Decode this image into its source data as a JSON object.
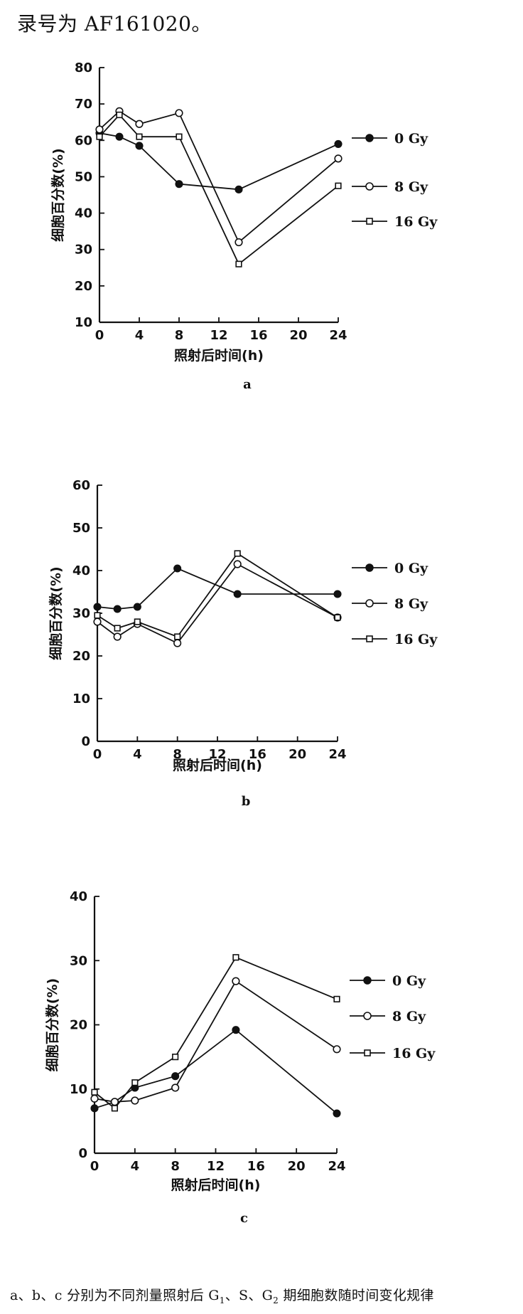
{
  "header": {
    "text": "录号为 AF161020。"
  },
  "caption": {
    "text_before": "a、b、c 分别为不同剂量照射后 G",
    "sub1": "1",
    "text_mid1": "、S、G",
    "sub2": "2",
    "text_after": " 期细胞数随时间变化规律"
  },
  "chart_data": [
    {
      "type": "line",
      "panel_label": "a",
      "xlabel": "照射后时间(h)",
      "ylabel": "细胞百分数(%)",
      "xlim": [
        0,
        24
      ],
      "ylim": [
        10,
        80
      ],
      "xticks": [
        0,
        4,
        8,
        12,
        16,
        20,
        24
      ],
      "yticks": [
        10,
        20,
        30,
        40,
        50,
        60,
        70,
        80
      ],
      "grid": false,
      "legend": "right",
      "x": [
        0,
        2,
        4,
        8,
        14,
        24
      ],
      "series": [
        {
          "name": "0 Gy",
          "marker": "filled-circle",
          "values": [
            62,
            61,
            58.5,
            48,
            46.5,
            59
          ]
        },
        {
          "name": "8 Gy",
          "marker": "open-circle",
          "values": [
            63,
            68,
            64.5,
            67.5,
            32,
            55
          ]
        },
        {
          "name": "16 Gy",
          "marker": "open-square",
          "values": [
            61,
            67,
            61,
            61,
            26,
            47.5
          ]
        }
      ]
    },
    {
      "type": "line",
      "panel_label": "b",
      "xlabel": "照射后时间(h)",
      "ylabel": "细胞百分数(%)",
      "xlim": [
        0,
        24
      ],
      "ylim": [
        0,
        60
      ],
      "xticks": [
        0,
        4,
        8,
        12,
        16,
        20,
        24
      ],
      "yticks": [
        0,
        10,
        20,
        30,
        40,
        50,
        60
      ],
      "grid": false,
      "legend": "right",
      "x": [
        0,
        2,
        4,
        8,
        14,
        24
      ],
      "series": [
        {
          "name": "0 Gy",
          "marker": "filled-circle",
          "values": [
            31.5,
            31,
            31.5,
            40.5,
            34.5,
            34.5
          ]
        },
        {
          "name": "8 Gy",
          "marker": "open-circle",
          "values": [
            28,
            24.5,
            27.5,
            23,
            41.5,
            29
          ]
        },
        {
          "name": "16 Gy",
          "marker": "open-square",
          "values": [
            29.5,
            26.5,
            28,
            24.5,
            44,
            29
          ]
        }
      ]
    },
    {
      "type": "line",
      "panel_label": "c",
      "xlabel": "照射后时间(h)",
      "ylabel": "细胞百分数(%)",
      "xlim": [
        0,
        24
      ],
      "ylim": [
        0,
        40
      ],
      "xticks": [
        0,
        4,
        8,
        12,
        16,
        20,
        24
      ],
      "yticks": [
        0,
        10,
        20,
        30,
        40
      ],
      "grid": false,
      "legend": "right",
      "x": [
        0,
        2,
        4,
        8,
        14,
        24
      ],
      "series": [
        {
          "name": "0 Gy",
          "marker": "filled-circle",
          "values": [
            7,
            8,
            10.2,
            12,
            19.2,
            6.2
          ]
        },
        {
          "name": "8 Gy",
          "marker": "open-circle",
          "values": [
            8.5,
            8,
            8.2,
            10.2,
            26.8,
            16.2
          ]
        },
        {
          "name": "16 Gy",
          "marker": "open-square",
          "values": [
            9.5,
            7,
            11,
            15,
            30.5,
            24
          ]
        }
      ]
    }
  ]
}
